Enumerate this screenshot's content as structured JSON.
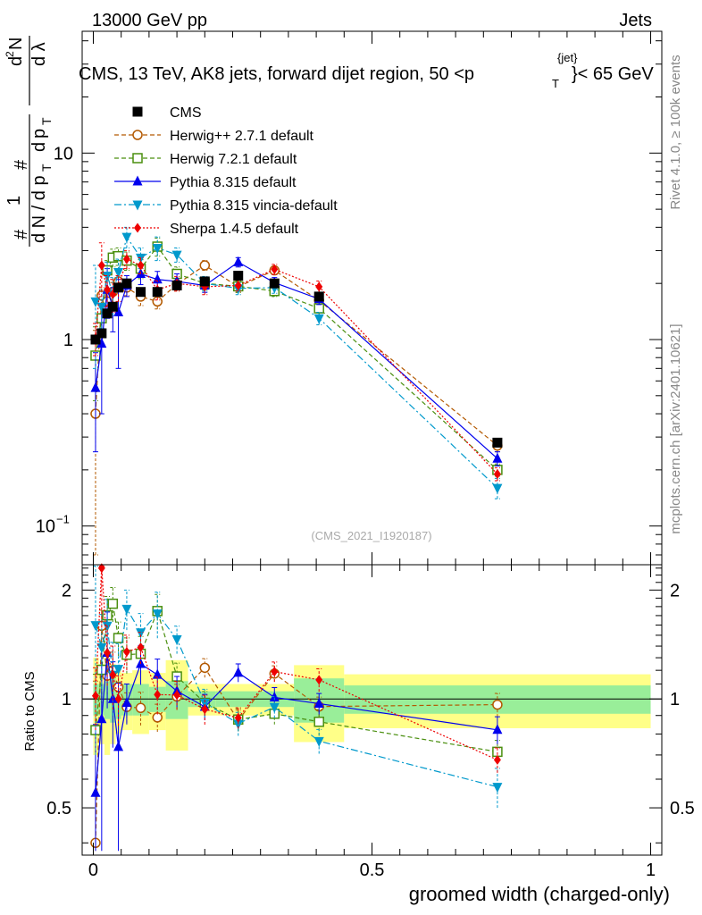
{
  "header": {
    "energy": "13000 GeV pp",
    "process": "Jets",
    "title": "CMS, 13 TeV, AK8 jets, forward dijet region, 50 <p",
    "title_sub": "T",
    "title_sup": "{jet}",
    "title_end": "}< 65 GeV",
    "side_rivet": "Rivet 4.1.0, ≥ 100k events",
    "side_mcplots": "mcplots.cern.ch [arXiv:2401.10621]",
    "watermark": "(CMS_2021_I1920187)"
  },
  "chart_data": {
    "type": "scatter",
    "xlabel": "groomed width (charged-only)",
    "ylabel_main": "1/dN/dpT dN/dpT dλ",
    "ylabel_main_parts": [
      "#",
      "1",
      "d N / d p",
      "T",
      "#",
      "d",
      "p",
      "T",
      "d",
      "2",
      "N",
      "d λ"
    ],
    "ylabel_ratio": "Ratio to CMS",
    "x_range": [
      -0.02,
      1.02
    ],
    "y_range_main": [
      0.062,
      45
    ],
    "y_range_ratio": [
      0.37,
      2.35
    ],
    "x_ticks": [
      {
        "v": 0,
        "label": "0"
      },
      {
        "v": 0.5,
        "label": "0.5"
      },
      {
        "v": 1,
        "label": "1"
      }
    ],
    "y_ticks_main": [
      {
        "v": 0.1,
        "base": "10",
        "exp": "−1"
      },
      {
        "v": 1,
        "base": "1",
        "exp": ""
      },
      {
        "v": 10,
        "base": "10",
        "exp": ""
      }
    ],
    "y_ticks_ratio": [
      {
        "v": 0.5,
        "label": "0.5"
      },
      {
        "v": 1,
        "label": "1"
      },
      {
        "v": 2,
        "label": "2"
      }
    ],
    "bins": [
      [
        0,
        0.01
      ],
      [
        0.01,
        0.02
      ],
      [
        0.02,
        0.03
      ],
      [
        0.03,
        0.04
      ],
      [
        0.04,
        0.05
      ],
      [
        0.05,
        0.07
      ],
      [
        0.07,
        0.1
      ],
      [
        0.1,
        0.13
      ],
      [
        0.13,
        0.17
      ],
      [
        0.17,
        0.22
      ],
      [
        0.22,
        0.29
      ],
      [
        0.29,
        0.36
      ],
      [
        0.36,
        0.45
      ],
      [
        0.45,
        1.0
      ]
    ],
    "x": [
      0.004,
      0.015,
      0.025,
      0.035,
      0.045,
      0.06,
      0.085,
      0.115,
      0.15,
      0.2,
      0.26,
      0.325,
      0.405,
      0.725
    ],
    "data": {
      "name": "CMS",
      "color": "#000000",
      "values": [
        1.0,
        1.08,
        1.38,
        1.5,
        1.9,
        2.0,
        1.8,
        1.8,
        1.95,
        2.05,
        2.2,
        2.0,
        1.7,
        0.28
      ],
      "band_stat": [
        0.1,
        0.1,
        0.12,
        0.14,
        0.12,
        0.1,
        0.1,
        0.08,
        0.12,
        0.05,
        0.05,
        0.05,
        0.14,
        0.09
      ],
      "band_total": [
        0.3,
        0.25,
        0.3,
        0.25,
        0.2,
        0.18,
        0.2,
        0.18,
        0.28,
        0.1,
        0.1,
        0.1,
        0.24,
        0.17
      ]
    },
    "series": [
      {
        "name": "Herwig++ 2.7.1 default",
        "color": "#b35900",
        "marker": "circle-open",
        "dash": "5,3",
        "values": [
          0.4,
          1.72,
          1.6,
          1.8,
          2.05,
          1.9,
          1.7,
          1.6,
          1.98,
          2.5,
          1.92,
          2.35,
          1.62,
          0.27
        ],
        "err": [
          0.72,
          0.18,
          0.18,
          0.22,
          0.24,
          0.18,
          0.18,
          0.14,
          0.16,
          0.15,
          0.13,
          0.12,
          0.1,
          0.02
        ]
      },
      {
        "name": "Herwig 7.2.1 default",
        "color": "#4a8f0f",
        "marker": "square-open",
        "dash": "5,3",
        "values": [
          0.82,
          1.3,
          2.35,
          2.75,
          2.8,
          2.65,
          2.4,
          3.15,
          2.25,
          2.0,
          1.93,
          1.82,
          1.47,
          0.2
        ],
        "err": [
          0.35,
          0.25,
          0.3,
          0.3,
          0.3,
          0.3,
          0.28,
          0.35,
          0.2,
          0.15,
          0.14,
          0.12,
          0.12,
          0.015
        ]
      },
      {
        "name": "Pythia 8.315 default",
        "color": "#0000ee",
        "marker": "triangle-up",
        "dash": "",
        "values": [
          0.55,
          0.95,
          1.85,
          1.5,
          1.4,
          1.95,
          2.25,
          2.1,
          2.05,
          1.95,
          2.6,
          2.02,
          1.65,
          0.23
        ],
        "err": [
          0.3,
          0.55,
          0.55,
          0.4,
          0.7,
          0.25,
          0.28,
          0.22,
          0.2,
          0.16,
          0.15,
          0.13,
          0.11,
          0.02
        ]
      },
      {
        "name": "Pythia 8.315 vincia-default",
        "color": "#0099cc",
        "marker": "triangle-down",
        "dash": "8,3,2,3",
        "values": [
          1.6,
          1.5,
          2.2,
          1.75,
          2.3,
          3.55,
          2.75,
          3.1,
          2.85,
          2.0,
          1.88,
          1.9,
          1.3,
          0.16
        ],
        "err": [
          0.9,
          0.35,
          0.4,
          0.4,
          0.4,
          0.45,
          0.35,
          0.45,
          0.25,
          0.18,
          0.14,
          0.13,
          0.1,
          0.02
        ]
      },
      {
        "name": "Sherpa 1.4.5 default",
        "color": "#ee0000",
        "marker": "diamond",
        "dash": "2,2",
        "values": [
          1.02,
          2.5,
          1.85,
          1.75,
          1.9,
          2.7,
          2.5,
          1.85,
          2.0,
          1.92,
          1.95,
          2.38,
          1.92,
          0.19
        ],
        "err": [
          0.2,
          0.8,
          0.35,
          0.35,
          0.3,
          0.3,
          0.25,
          0.22,
          0.18,
          0.18,
          0.13,
          0.15,
          0.14,
          0.015
        ]
      }
    ]
  }
}
